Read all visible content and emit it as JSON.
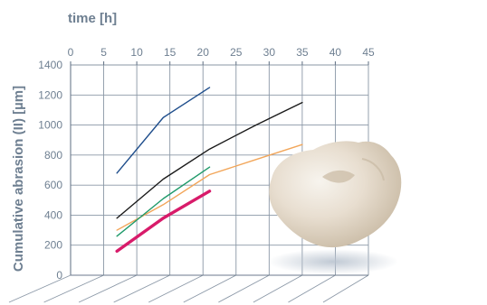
{
  "chart_data": {
    "type": "line",
    "xlabel": "time [h]",
    "ylabel": "Cumulative abrasion (II) [µm]",
    "xlim": [
      0,
      45
    ],
    "ylim": [
      0,
      1400
    ],
    "x_ticks": [
      "0",
      "5",
      "10",
      "15",
      "20",
      "25",
      "30",
      "35",
      "40",
      "45"
    ],
    "y_ticks": [
      "0",
      "200",
      "400",
      "600",
      "800",
      "1000",
      "1200",
      "1400"
    ],
    "grid": true,
    "series": [
      {
        "color": "#1f4e8c",
        "x": [
          7,
          14,
          21
        ],
        "y": [
          680,
          1050,
          1250
        ]
      },
      {
        "color": "#1a1a1a",
        "x": [
          7,
          14,
          21,
          28,
          35
        ],
        "y": [
          380,
          640,
          840,
          1000,
          1150
        ]
      },
      {
        "color": "#f2a65a",
        "x": [
          7,
          14,
          21,
          28,
          35
        ],
        "y": [
          300,
          470,
          670,
          770,
          870
        ]
      },
      {
        "color": "#1f9a6a",
        "x": [
          7,
          14,
          21
        ],
        "y": [
          260,
          510,
          720
        ]
      },
      {
        "color": "#d81b6a",
        "x": [
          7,
          14,
          21
        ],
        "y": [
          160,
          380,
          560
        ]
      }
    ],
    "image": "tooth-crown-photo"
  }
}
